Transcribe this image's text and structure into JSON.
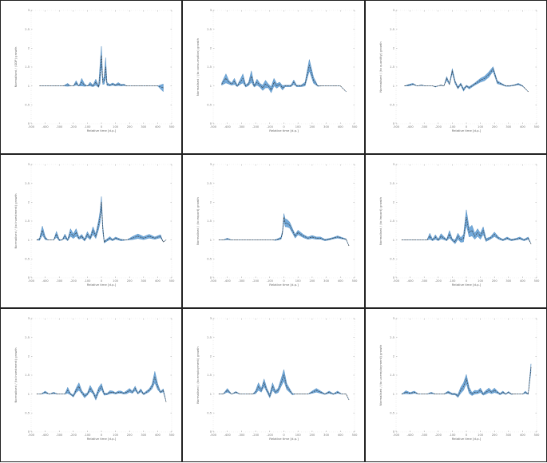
{
  "layout": {
    "rows": 3,
    "cols": 3
  },
  "colors": {
    "band": "#5b9bd5",
    "band_edge": "#3f7fb8",
    "line": "#333333",
    "frame": "#222222"
  },
  "chart_data": [
    {
      "type": "area",
      "xlabel": "Relative time [d.p.]",
      "ylabel": "Normalised / (GDP) growth",
      "xlim": [
        -500,
        500
      ],
      "ylim": [
        0,
        3
      ],
      "xticks": [
        "-500",
        "-400",
        "-300",
        "-200",
        "-100",
        "0",
        "100",
        "200",
        "300",
        "400",
        "500"
      ],
      "yticks": [
        "0",
        "0.5",
        "1",
        "1.5",
        "2",
        "2.5",
        "3"
      ],
      "x": [
        -440,
        -400,
        -360,
        -330,
        -310,
        -290,
        -270,
        -240,
        -220,
        -200,
        -180,
        -160,
        -140,
        -120,
        -100,
        -80,
        -60,
        -40,
        -20,
        -10,
        0,
        10,
        20,
        30,
        40,
        60,
        80,
        100,
        120,
        140,
        160,
        180,
        200,
        240,
        280,
        320,
        360,
        400,
        440
      ],
      "center": [
        1,
        1,
        1,
        1,
        1,
        1,
        1,
        1.03,
        1,
        1,
        1.08,
        1,
        1.1,
        1.02,
        1,
        1.05,
        1,
        1.1,
        0.98,
        1.3,
        1.8,
        1.1,
        1.15,
        1.5,
        1.05,
        1.02,
        1.05,
        1.02,
        1.05,
        1.02,
        1.03,
        1,
        1,
        1,
        1,
        1,
        1,
        1,
        0.95
      ],
      "spread": [
        0,
        0,
        0,
        0,
        0,
        0,
        0,
        0.04,
        0,
        0,
        0.06,
        0,
        0.1,
        0.03,
        0,
        0.05,
        0.02,
        0.08,
        0.02,
        0.25,
        0.25,
        0.06,
        0.1,
        0.25,
        0.04,
        0.02,
        0.03,
        0.02,
        0.04,
        0.02,
        0.02,
        0,
        0,
        0,
        0,
        0,
        0,
        0,
        0.1
      ]
    },
    {
      "type": "area",
      "xlabel": "Relative time [d.p.]",
      "ylabel": "Normalised / (to consumption) growth",
      "xlim": [
        -500,
        500
      ],
      "ylim": [
        0,
        3
      ],
      "xticks": [
        "-500",
        "-400",
        "-300",
        "-200",
        "-100",
        "0",
        "100",
        "200",
        "300",
        "400",
        "500"
      ],
      "yticks": [
        "0",
        "0.5",
        "1",
        "1.5",
        "2",
        "2.5",
        "3"
      ],
      "x": [
        -440,
        -410,
        -390,
        -370,
        -350,
        -330,
        -310,
        -290,
        -270,
        -250,
        -230,
        -210,
        -190,
        -170,
        -150,
        -130,
        -110,
        -90,
        -70,
        -50,
        -30,
        -10,
        10,
        30,
        50,
        70,
        90,
        120,
        150,
        180,
        210,
        240,
        270,
        300,
        330,
        360,
        400,
        440
      ],
      "center": [
        1.05,
        1.2,
        1.1,
        1.05,
        1.12,
        1,
        1.1,
        1.2,
        1,
        1.05,
        1.25,
        1,
        1.1,
        1.02,
        0.95,
        1.05,
        1,
        0.9,
        1.1,
        1,
        1.05,
        0.95,
        1,
        1,
        1,
        1.1,
        1,
        1,
        1.05,
        1.55,
        1.15,
        1,
        1,
        1,
        1,
        1,
        1,
        0.85
      ],
      "spread": [
        0.03,
        0.12,
        0.05,
        0.03,
        0.08,
        0.02,
        0.06,
        0.12,
        0.03,
        0.04,
        0.15,
        0.03,
        0.08,
        0.05,
        0.07,
        0.1,
        0.05,
        0.08,
        0.1,
        0.06,
        0.05,
        0.06,
        0.02,
        0.02,
        0.02,
        0.06,
        0.02,
        0.02,
        0.05,
        0.15,
        0.08,
        0.01,
        0,
        0,
        0,
        0,
        0,
        0
      ]
    },
    {
      "type": "area",
      "xlabel": "Relative time [d.p.]",
      "ylabel": "Normalised / (to quantity) growth",
      "xlim": [
        -500,
        500
      ],
      "ylim": [
        0,
        3
      ],
      "xticks": [
        "-500",
        "-400",
        "-300",
        "-200",
        "-100",
        "0",
        "100",
        "200",
        "300",
        "400",
        "500"
      ],
      "yticks": [
        "0",
        "0.5",
        "1",
        "1.5",
        "2",
        "2.5",
        "3"
      ],
      "x": [
        -440,
        -410,
        -380,
        -350,
        -320,
        -290,
        -260,
        -240,
        -220,
        -200,
        -180,
        -160,
        -140,
        -120,
        -100,
        -80,
        -60,
        -40,
        -20,
        0,
        20,
        40,
        60,
        80,
        100,
        130,
        160,
        190,
        220,
        250,
        280,
        310,
        340,
        370,
        400,
        440
      ],
      "center": [
        1,
        1.02,
        1.05,
        1,
        1.02,
        1,
        1,
        1,
        0.98,
        1,
        1.02,
        1,
        1.2,
        1.05,
        1.4,
        1.1,
        0.95,
        1.05,
        0.9,
        1,
        0.95,
        1,
        1.05,
        1.1,
        1.15,
        1.2,
        1.3,
        1.45,
        1.1,
        1.05,
        1,
        1,
        1.02,
        1.05,
        1,
        0.85
      ],
      "spread": [
        0,
        0.02,
        0.02,
        0,
        0.01,
        0,
        0,
        0,
        0.01,
        0,
        0.01,
        0,
        0.05,
        0.02,
        0.06,
        0.04,
        0.03,
        0.03,
        0.04,
        0.02,
        0.03,
        0.03,
        0.03,
        0.04,
        0.05,
        0.06,
        0.07,
        0.06,
        0.04,
        0.02,
        0.01,
        0.01,
        0.01,
        0.02,
        0.01,
        0
      ]
    },
    {
      "type": "area",
      "xlabel": "Relative time [d.p.]",
      "ylabel": "Normalised / (to investment) growth",
      "xlim": [
        -500,
        500
      ],
      "ylim": [
        0,
        3
      ],
      "xticks": [
        "-500",
        "-400",
        "-300",
        "-200",
        "-100",
        "0",
        "100",
        "200",
        "300",
        "400",
        "500"
      ],
      "yticks": [
        "0",
        "0.5",
        "1",
        "1.5",
        "2",
        "2.5",
        "3"
      ],
      "x": [
        -460,
        -440,
        -420,
        -400,
        -380,
        -360,
        -340,
        -320,
        -300,
        -280,
        -260,
        -240,
        -220,
        -200,
        -180,
        -160,
        -140,
        -120,
        -100,
        -80,
        -60,
        -40,
        -20,
        -10,
        0,
        10,
        20,
        40,
        60,
        80,
        100,
        140,
        180,
        220,
        260,
        300,
        340,
        380,
        420,
        440,
        460
      ],
      "center": [
        1,
        1.02,
        1.25,
        1.05,
        1,
        1,
        1,
        1.15,
        1,
        1,
        1.1,
        1,
        1.2,
        1.1,
        1.2,
        1.05,
        1.1,
        1,
        1.15,
        1.05,
        1.25,
        1.1,
        1.4,
        1.6,
        2,
        1.3,
        0.95,
        1,
        1.05,
        1,
        1.05,
        1,
        1,
        1.05,
        1.1,
        1.05,
        1.1,
        1.05,
        1.1,
        0.95,
        1
      ],
      "spread": [
        0,
        0.03,
        0.12,
        0.04,
        0,
        0,
        0,
        0.08,
        0.02,
        0,
        0.06,
        0.02,
        0.1,
        0.06,
        0.1,
        0.03,
        0.05,
        0.03,
        0.07,
        0.04,
        0.1,
        0.06,
        0.12,
        0.15,
        0.15,
        0.1,
        0.03,
        0.03,
        0.04,
        0.02,
        0.03,
        0.02,
        0,
        0.04,
        0.06,
        0.04,
        0.05,
        0.03,
        0.04,
        0,
        0
      ]
    },
    {
      "type": "area",
      "xlabel": "Relative time [d.p.]",
      "ylabel": "Normalised / (to export) growth",
      "xlim": [
        -500,
        500
      ],
      "ylim": [
        0,
        3
      ],
      "xticks": [
        "-500",
        "-400",
        "-300",
        "-200",
        "-100",
        "0",
        "100",
        "200",
        "300",
        "400",
        "500"
      ],
      "yticks": [
        "0",
        "0.5",
        "1",
        "1.5",
        "2",
        "2.5",
        "3"
      ],
      "x": [
        -460,
        -430,
        -400,
        -370,
        -340,
        -310,
        -280,
        -250,
        -220,
        -190,
        -160,
        -130,
        -100,
        -80,
        -60,
        -40,
        -20,
        -10,
        0,
        10,
        20,
        40,
        60,
        80,
        100,
        120,
        140,
        170,
        200,
        230,
        260,
        290,
        320,
        350,
        380,
        410,
        440,
        460
      ],
      "center": [
        1,
        1,
        1.03,
        1,
        1,
        1,
        1,
        1,
        1,
        1,
        1,
        1,
        1,
        1,
        1,
        1.02,
        1.05,
        1.2,
        1.6,
        1.45,
        1.45,
        1.4,
        1.25,
        1.1,
        1.2,
        1.15,
        1.1,
        1.05,
        1.08,
        1.05,
        1.05,
        1,
        1.02,
        1.05,
        1.08,
        1.05,
        1.02,
        0.85
      ],
      "spread": [
        0,
        0,
        0.02,
        0,
        0,
        0,
        0,
        0,
        0,
        0,
        0,
        0,
        0,
        0,
        0.01,
        0.02,
        0.03,
        0.05,
        0.1,
        0.1,
        0.1,
        0.08,
        0.06,
        0.05,
        0.06,
        0.05,
        0.04,
        0.03,
        0.04,
        0.03,
        0.03,
        0.02,
        0.02,
        0.02,
        0.03,
        0.02,
        0.01,
        0
      ]
    },
    {
      "type": "area",
      "xlabel": "Relative time [d.p.]",
      "ylabel": "Normalised / (to import) growth",
      "xlim": [
        -500,
        500
      ],
      "ylim": [
        0,
        3
      ],
      "xticks": [
        "-500",
        "-400",
        "-300",
        "-200",
        "-100",
        "0",
        "100",
        "200",
        "300",
        "400",
        "500"
      ],
      "yticks": [
        "0",
        "0.5",
        "1",
        "1.5",
        "2",
        "2.5",
        "3"
      ],
      "x": [
        -460,
        -430,
        -400,
        -370,
        -340,
        -310,
        -280,
        -260,
        -240,
        -220,
        -200,
        -180,
        -160,
        -140,
        -120,
        -100,
        -80,
        -60,
        -40,
        -20,
        0,
        20,
        40,
        60,
        80,
        100,
        120,
        140,
        170,
        200,
        230,
        260,
        290,
        320,
        350,
        380,
        410,
        440,
        460
      ],
      "center": [
        1,
        1,
        1,
        1,
        1,
        1,
        1,
        1.1,
        1,
        1.08,
        1,
        1.1,
        1.05,
        1,
        1.15,
        1,
        0.95,
        1.1,
        1,
        1.05,
        1.6,
        1.2,
        1.25,
        1.1,
        1.2,
        1.1,
        1.25,
        1,
        1.05,
        1.15,
        1.05,
        1,
        1.05,
        1,
        1.02,
        1.05,
        1,
        1.05,
        0.9
      ],
      "spread": [
        0,
        0,
        0,
        0,
        0,
        0,
        0,
        0.08,
        0.02,
        0.06,
        0.02,
        0.07,
        0.04,
        0.02,
        0.1,
        0.03,
        0.05,
        0.08,
        0.06,
        0.1,
        0.2,
        0.12,
        0.14,
        0.08,
        0.1,
        0.08,
        0.1,
        0.04,
        0.03,
        0.06,
        0.03,
        0.02,
        0.03,
        0.02,
        0.02,
        0.03,
        0.02,
        0.03,
        0
      ]
    },
    {
      "type": "area",
      "xlabel": "Relative time [d.p.]",
      "ylabel": "Normalised / (to investment) growth",
      "xlim": [
        -500,
        500
      ],
      "ylim": [
        0,
        3
      ],
      "xticks": [
        "-500",
        "-400",
        "-300",
        "-200",
        "-100",
        "0",
        "100",
        "200",
        "300",
        "400",
        "500"
      ],
      "yticks": [
        "0",
        "0.5",
        "1",
        "1.5",
        "2",
        "2.5",
        "3"
      ],
      "x": [
        -460,
        -430,
        -400,
        -370,
        -340,
        -310,
        -280,
        -260,
        -240,
        -220,
        -200,
        -180,
        -160,
        -140,
        -120,
        -100,
        -80,
        -60,
        -40,
        -20,
        0,
        20,
        40,
        60,
        80,
        100,
        120,
        140,
        160,
        180,
        200,
        220,
        240,
        260,
        280,
        300,
        320,
        340,
        360,
        380,
        400,
        420,
        440,
        460
      ],
      "center": [
        1,
        1,
        1.05,
        1,
        1.03,
        1,
        1,
        1,
        1.1,
        1,
        0.95,
        1.1,
        1.2,
        1.05,
        0.95,
        1,
        1.15,
        1.05,
        0.9,
        1.1,
        1.2,
        1,
        1,
        1.05,
        1.05,
        1.02,
        1.05,
        1.05,
        1.02,
        1.05,
        1.1,
        1.05,
        1.15,
        1.02,
        1.1,
        1,
        1.05,
        1.1,
        1.2,
        1.45,
        1.2,
        1.05,
        1.1,
        0.8
      ],
      "spread": [
        0,
        0,
        0.03,
        0,
        0.02,
        0,
        0,
        0,
        0.08,
        0.02,
        0.03,
        0.06,
        0.1,
        0.04,
        0.05,
        0.03,
        0.08,
        0.04,
        0.06,
        0.07,
        0.08,
        0.03,
        0.02,
        0.04,
        0.03,
        0.02,
        0.03,
        0.03,
        0.02,
        0.04,
        0.05,
        0.03,
        0.06,
        0.02,
        0.04,
        0.02,
        0.03,
        0.04,
        0.06,
        0.15,
        0.08,
        0.02,
        0.04,
        0
      ]
    },
    {
      "type": "area",
      "xlabel": "Relative time [d.p.]",
      "ylabel": "Normalised / (to employment) growth",
      "xlim": [
        -500,
        500
      ],
      "ylim": [
        0,
        3
      ],
      "xticks": [
        "-500",
        "-400",
        "-300",
        "-200",
        "-100",
        "0",
        "100",
        "200",
        "300",
        "400",
        "500"
      ],
      "yticks": [
        "0",
        "0.5",
        "1",
        "1.5",
        "2",
        "2.5",
        "3"
      ],
      "x": [
        -460,
        -430,
        -400,
        -370,
        -340,
        -310,
        -280,
        -260,
        -240,
        -220,
        -200,
        -180,
        -160,
        -140,
        -120,
        -100,
        -80,
        -60,
        -40,
        -20,
        0,
        20,
        40,
        60,
        80,
        100,
        120,
        140,
        170,
        200,
        230,
        260,
        290,
        320,
        350,
        380,
        410,
        440,
        460
      ],
      "center": [
        1,
        1,
        1.1,
        1,
        1.05,
        1,
        1,
        1,
        1,
        1,
        1.05,
        1.2,
        1.1,
        1.3,
        1.1,
        0.95,
        1.2,
        1.05,
        1.1,
        1.3,
        1.5,
        1.2,
        1.1,
        1,
        1,
        1,
        1,
        1,
        1,
        1.05,
        1.1,
        1.05,
        1,
        1.05,
        1,
        1.05,
        1,
        1,
        0.85
      ],
      "spread": [
        0,
        0,
        0.05,
        0,
        0.02,
        0,
        0,
        0,
        0,
        0,
        0.04,
        0.1,
        0.05,
        0.1,
        0.05,
        0.05,
        0.1,
        0.04,
        0.06,
        0.1,
        0.15,
        0.08,
        0.05,
        0.02,
        0,
        0,
        0,
        0,
        0,
        0.03,
        0.05,
        0.03,
        0.01,
        0.03,
        0.01,
        0.03,
        0,
        0,
        0
      ]
    },
    {
      "type": "area",
      "xlabel": "Relative time [d.p.]",
      "ylabel": "Normalised / (to unemployment) growth",
      "xlim": [
        -500,
        500
      ],
      "ylim": [
        0,
        3
      ],
      "xticks": [
        "-500",
        "-400",
        "-300",
        "-200",
        "-100",
        "0",
        "100",
        "200",
        "300",
        "400",
        "500"
      ],
      "yticks": [
        "0",
        "0.5",
        "1",
        "1.5",
        "2",
        "2.5",
        "3"
      ],
      "x": [
        -460,
        -430,
        -400,
        -370,
        -340,
        -310,
        -280,
        -250,
        -220,
        -190,
        -160,
        -130,
        -100,
        -80,
        -60,
        -40,
        -20,
        0,
        20,
        40,
        60,
        80,
        100,
        120,
        140,
        160,
        180,
        200,
        220,
        240,
        260,
        280,
        300,
        320,
        340,
        360,
        380,
        400,
        420,
        440,
        460
      ],
      "center": [
        1,
        1.05,
        1.02,
        1.05,
        1,
        1,
        1,
        1.03,
        1,
        1,
        1,
        1.05,
        1,
        1,
        0.95,
        1.1,
        1.2,
        1.4,
        1.1,
        1,
        1.05,
        1.05,
        1.1,
        1,
        1.05,
        1.1,
        1.05,
        1.1,
        1.05,
        1,
        1.05,
        1,
        1.05,
        1,
        1,
        1,
        1,
        1,
        1.05,
        1,
        1.7
      ],
      "spread": [
        0,
        0.04,
        0.02,
        0.03,
        0,
        0,
        0,
        0.02,
        0,
        0,
        0,
        0.03,
        0.02,
        0.02,
        0.04,
        0.08,
        0.1,
        0.12,
        0.08,
        0.04,
        0.05,
        0.04,
        0.06,
        0.03,
        0.05,
        0.06,
        0.04,
        0.06,
        0.03,
        0.02,
        0.03,
        0.01,
        0.02,
        0.01,
        0,
        0,
        0,
        0,
        0.03,
        0.01,
        0.1
      ]
    }
  ]
}
